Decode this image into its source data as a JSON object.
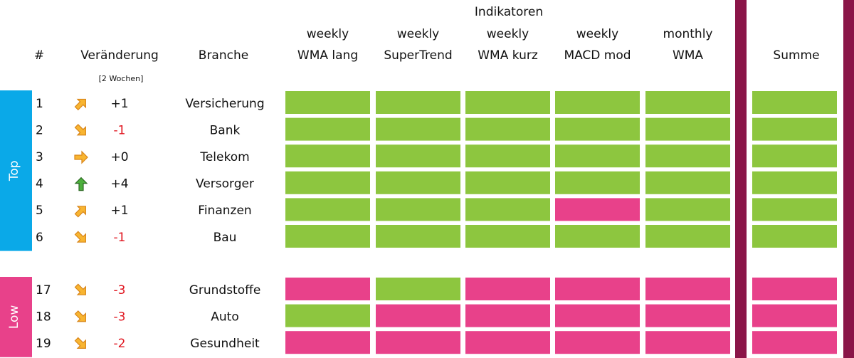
{
  "header": {
    "group_title": "Indikatoren",
    "columns": {
      "rank": "#",
      "change": "Veränderung",
      "change_note": "[2 Wochen]",
      "sector": "Branche",
      "indicators": [
        [
          "weekly",
          "WMA lang"
        ],
        [
          "weekly",
          "SuperTrend"
        ],
        [
          "weekly",
          "WMA kurz"
        ],
        [
          "weekly",
          "MACD mod"
        ],
        [
          "monthly",
          "WMA"
        ]
      ],
      "sum": "Summe"
    }
  },
  "groups": [
    {
      "label": "Top",
      "color": "#0aa9e8",
      "rows": [
        {
          "rank": "1",
          "trend": "up-right",
          "change": "+1",
          "change_tone": "neutral",
          "sector": "Versicherung",
          "signals": [
            "positive",
            "positive",
            "positive",
            "positive",
            "positive"
          ],
          "sum": "positive"
        },
        {
          "rank": "2",
          "trend": "down-right",
          "change": "-1",
          "change_tone": "negative",
          "sector": "Bank",
          "signals": [
            "positive",
            "positive",
            "positive",
            "positive",
            "positive"
          ],
          "sum": "positive"
        },
        {
          "rank": "3",
          "trend": "right",
          "change": "+0",
          "change_tone": "neutral",
          "sector": "Telekom",
          "signals": [
            "positive",
            "positive",
            "positive",
            "positive",
            "positive"
          ],
          "sum": "positive"
        },
        {
          "rank": "4",
          "trend": "up",
          "change": "+4",
          "change_tone": "neutral",
          "sector": "Versorger",
          "signals": [
            "positive",
            "positive",
            "positive",
            "positive",
            "positive"
          ],
          "sum": "positive"
        },
        {
          "rank": "5",
          "trend": "up-right",
          "change": "+1",
          "change_tone": "neutral",
          "sector": "Finanzen",
          "signals": [
            "positive",
            "positive",
            "positive",
            "negative",
            "positive"
          ],
          "sum": "positive"
        },
        {
          "rank": "6",
          "trend": "down-right",
          "change": "-1",
          "change_tone": "negative",
          "sector": "Bau",
          "signals": [
            "positive",
            "positive",
            "positive",
            "positive",
            "positive"
          ],
          "sum": "positive"
        }
      ]
    },
    {
      "label": "Low",
      "color": "#e8418a",
      "rows": [
        {
          "rank": "17",
          "trend": "down-right",
          "change": "-3",
          "change_tone": "negative",
          "sector": "Grundstoffe",
          "signals": [
            "negative",
            "positive",
            "negative",
            "negative",
            "negative"
          ],
          "sum": "negative"
        },
        {
          "rank": "18",
          "trend": "down-right",
          "change": "-3",
          "change_tone": "negative",
          "sector": "Auto",
          "signals": [
            "positive",
            "negative",
            "negative",
            "negative",
            "negative"
          ],
          "sum": "negative"
        },
        {
          "rank": "19",
          "trend": "down-right",
          "change": "-2",
          "change_tone": "negative",
          "sector": "Gesundheit",
          "signals": [
            "negative",
            "negative",
            "negative",
            "negative",
            "negative"
          ],
          "sum": "negative"
        }
      ]
    }
  ]
}
